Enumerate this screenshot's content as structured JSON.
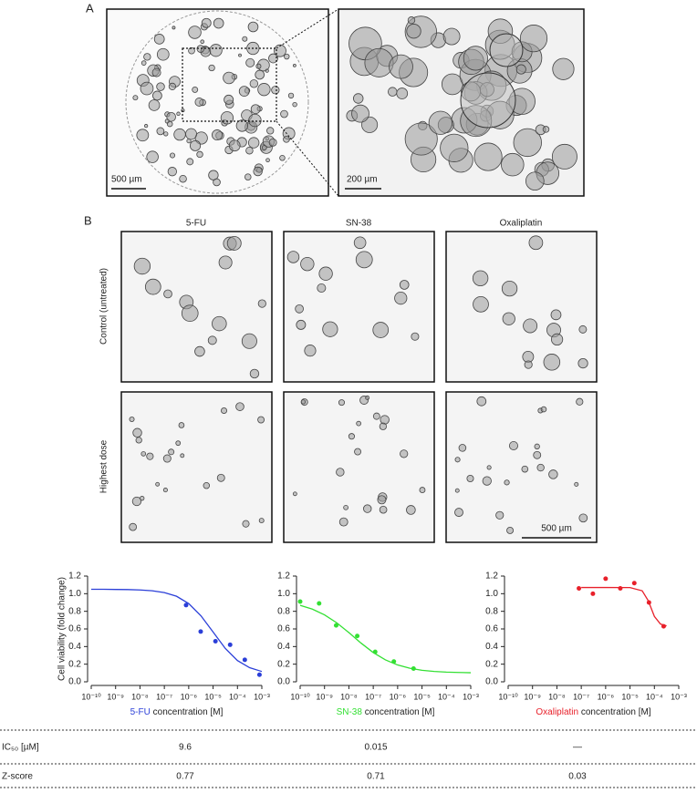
{
  "panel_a": {
    "label": "A",
    "scale_left": "500 µm",
    "scale_right": "200 µm"
  },
  "panel_b": {
    "label": "B",
    "columns": [
      "5-FU",
      "SN-38",
      "Oxaliplatin"
    ],
    "rows": [
      "Control (untreated)",
      "Highest dose"
    ],
    "scale": "500 µm"
  },
  "chart_data": [
    {
      "type": "scatter",
      "drug": "5-FU",
      "x_label": "concentration [M]",
      "y_label": "Cell viability (fold change)",
      "color": "#2b3fd8",
      "log_x": true,
      "xlim": [
        1e-10,
        0.001
      ],
      "xticks": [
        {
          "value": 1e-10,
          "label": "10⁻¹⁰"
        },
        {
          "value": 1e-09,
          "label": "10⁻⁹"
        },
        {
          "value": 1e-08,
          "label": "10⁻⁸"
        },
        {
          "value": 1e-07,
          "label": "10⁻⁷"
        },
        {
          "value": 1e-06,
          "label": "10⁻⁶"
        },
        {
          "value": 1e-05,
          "label": "10⁻⁵"
        },
        {
          "value": 0.0001,
          "label": "10⁻⁴"
        },
        {
          "value": 0.001,
          "label": "10⁻³"
        }
      ],
      "ylim": [
        0,
        1.2
      ],
      "yticks": [
        {
          "value": 0,
          "label": "0.0"
        },
        0.2,
        0.4,
        0.6,
        0.8,
        {
          "value": 1,
          "label": "1.0"
        },
        1.2
      ],
      "x": [
        7.8e-07,
        3.1e-06,
        1.25e-05,
        5e-05,
        0.0002,
        0.0008
      ],
      "values": [
        0.87,
        0.57,
        0.46,
        0.42,
        0.25,
        0.08
      ],
      "fit_x": [
        1e-10,
        3.16e-10,
        1e-09,
        3.16e-09,
        1e-08,
        3.16e-08,
        1e-07,
        3.16e-07,
        1e-06,
        3.16e-06,
        1e-05,
        3.16e-05,
        0.0001,
        0.000316,
        0.001
      ],
      "fit_values": [
        1.05,
        1.05,
        1.048,
        1.047,
        1.042,
        1.033,
        1.013,
        0.971,
        0.888,
        0.75,
        0.565,
        0.379,
        0.241,
        0.16,
        0.117
      ]
    },
    {
      "type": "scatter",
      "drug": "SN-38",
      "x_label": "concentration [M]",
      "color": "#33e033",
      "log_x": true,
      "xlim": [
        1e-10,
        0.001
      ],
      "xticks": [
        {
          "value": 1e-10,
          "label": "10⁻¹⁰"
        },
        {
          "value": 1e-09,
          "label": "10⁻⁹"
        },
        {
          "value": 1e-08,
          "label": "10⁻⁸"
        },
        {
          "value": 1e-07,
          "label": "10⁻⁷"
        },
        {
          "value": 1e-06,
          "label": "10⁻⁶"
        },
        {
          "value": 1e-05,
          "label": "10⁻⁵"
        },
        {
          "value": 0.0001,
          "label": "10⁻⁴"
        },
        {
          "value": 0.001,
          "label": "10⁻³"
        }
      ],
      "ylim": [
        0,
        1.2
      ],
      "yticks": [
        {
          "value": 0,
          "label": "0.0"
        },
        0.2,
        0.4,
        0.6,
        0.8,
        {
          "value": 1,
          "label": "1.0"
        },
        1.2
      ],
      "x": [
        1e-10,
        6e-10,
        3e-09,
        2.2e-08,
        1.2e-07,
        7e-07,
        4.5e-06
      ],
      "values": [
        0.91,
        0.89,
        0.64,
        0.52,
        0.34,
        0.23,
        0.15
      ],
      "fit_x": [
        1e-10,
        3.16e-10,
        1e-09,
        3.16e-09,
        1e-08,
        3.16e-08,
        1e-07,
        3.16e-07,
        1e-06,
        3.16e-06,
        1e-05,
        3.16e-05,
        0.0001,
        0.000316,
        0.001
      ],
      "fit_values": [
        0.868,
        0.825,
        0.76,
        0.67,
        0.558,
        0.439,
        0.332,
        0.249,
        0.191,
        0.154,
        0.131,
        0.118,
        0.11,
        0.106,
        0.103
      ]
    },
    {
      "type": "scatter",
      "drug": "Oxaliplatin",
      "x_label": "concentration [M]",
      "color": "#e8202a",
      "log_x": true,
      "xlim": [
        1e-10,
        0.001
      ],
      "xticks": [
        {
          "value": 1e-10,
          "label": "10⁻¹⁰"
        },
        {
          "value": 1e-09,
          "label": "10⁻⁹"
        },
        {
          "value": 1e-08,
          "label": "10⁻⁸"
        },
        {
          "value": 1e-07,
          "label": "10⁻⁷"
        },
        {
          "value": 1e-06,
          "label": "10⁻⁶"
        },
        {
          "value": 1e-05,
          "label": "10⁻⁵"
        },
        {
          "value": 0.0001,
          "label": "10⁻⁴"
        },
        {
          "value": 0.001,
          "label": "10⁻³"
        }
      ],
      "ylim": [
        0,
        1.2
      ],
      "yticks": [
        {
          "value": 0,
          "label": "0.0"
        },
        0.2,
        0.4,
        0.6,
        0.8,
        {
          "value": 1,
          "label": "1.0"
        },
        1.2
      ],
      "x": [
        8e-08,
        3e-07,
        1e-06,
        4e-06,
        1.5e-05,
        6e-05,
        0.00024
      ],
      "values": [
        1.06,
        1.0,
        1.17,
        1.06,
        1.12,
        0.9,
        0.63
      ],
      "fit_x": [
        1e-07,
        1e-06,
        1e-05,
        3.16e-05,
        5.6e-05,
        0.0001,
        0.000178,
        0.000316
      ],
      "fit_values": [
        1.07,
        1.07,
        1.069,
        1.033,
        0.92,
        0.742,
        0.655,
        0.635
      ]
    }
  ],
  "table": {
    "rows": [
      [
        "IC₅₀ [µM]",
        "9.6",
        "0.015",
        "—"
      ],
      [
        "Z-score",
        "0.77",
        "0.71",
        "0.03"
      ]
    ]
  }
}
